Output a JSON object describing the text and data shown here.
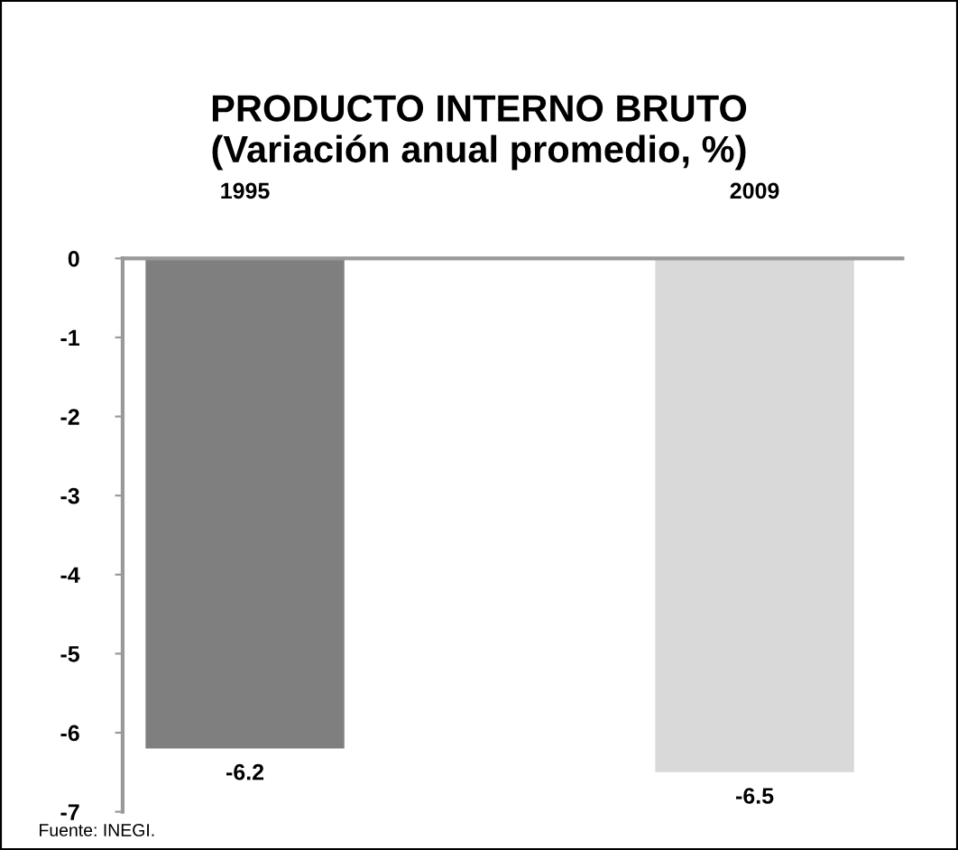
{
  "chart_data": {
    "type": "bar",
    "title": "PRODUCTO INTERNO BRUTO\n(Variación anual promedio, %)",
    "categories": [
      "1995",
      "2009"
    ],
    "values": [
      -6.2,
      -6.5
    ],
    "colors": [
      "#7f7f7f",
      "#d9d9d9"
    ],
    "ylim": [
      -7,
      0
    ],
    "yticks": [
      0,
      -1,
      -2,
      -3,
      -4,
      -5,
      -6,
      -7
    ],
    "data_labels": true,
    "annotations": [
      "Fuente: INEGI."
    ]
  }
}
